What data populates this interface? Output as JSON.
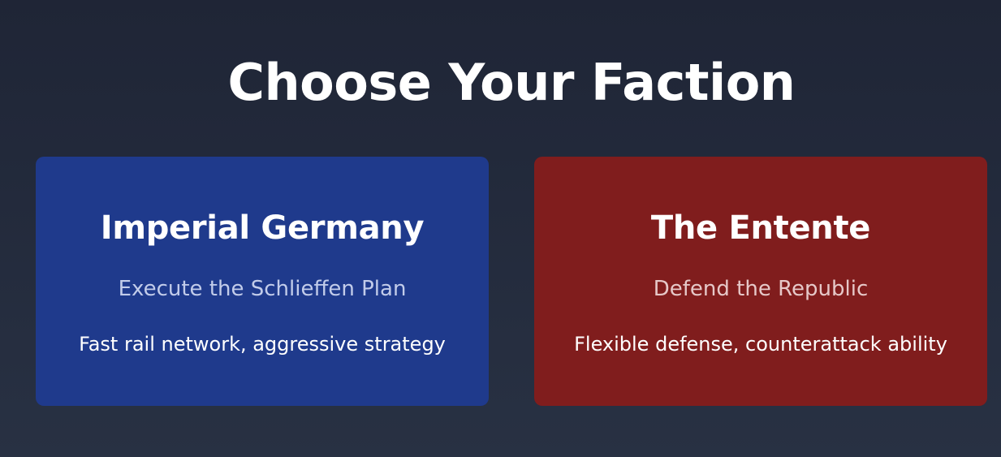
{
  "screen": {
    "title": "Choose Your Faction"
  },
  "factions": [
    {
      "name": "Imperial Germany",
      "subtitle": "Execute the Schlieffen Plan",
      "description": "Fast rail network, aggressive strategy",
      "color": "#1f3a8c"
    },
    {
      "name": "The Entente",
      "subtitle": "Defend the Republic",
      "description": "Flexible defense, counterattack ability",
      "color": "#801d1d"
    }
  ],
  "colors": {
    "background_top": "#1f2536",
    "background_bottom": "#283143",
    "text": "#ffffff"
  }
}
